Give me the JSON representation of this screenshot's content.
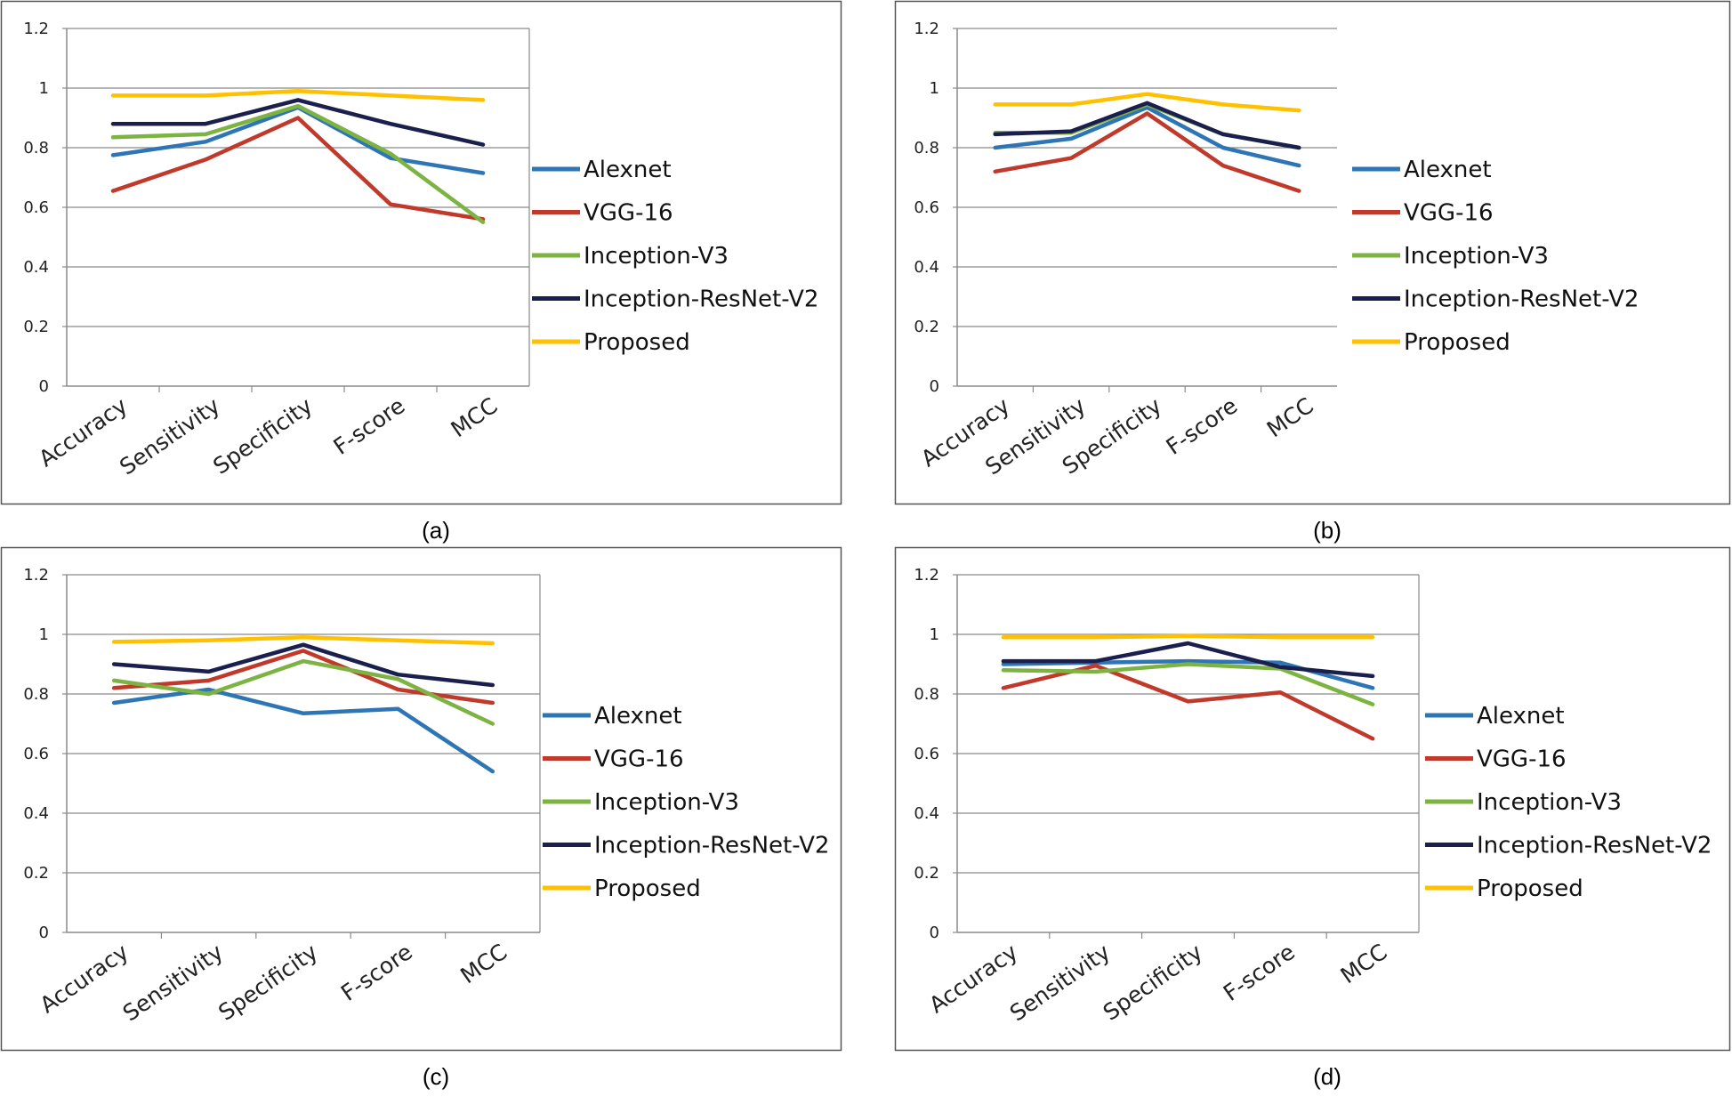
{
  "chart_data": [
    {
      "type": "line",
      "caption": "(a)",
      "categories": [
        "Accuracy",
        "Sensitivity",
        "Specificity",
        "F-score",
        "MCC"
      ],
      "ylim": [
        0,
        1.2
      ],
      "yticks": [
        "0",
        "0.2",
        "0.4",
        "0.6",
        "0.8",
        "1",
        "1.2"
      ],
      "grid": true,
      "legend_position": "right",
      "series": [
        {
          "name": "Alexnet",
          "color": "#2E75B6",
          "values": [
            0.775,
            0.82,
            0.935,
            0.765,
            0.715
          ]
        },
        {
          "name": "VGG-16",
          "color": "#C0392B",
          "values": [
            0.655,
            0.76,
            0.9,
            0.61,
            0.56
          ]
        },
        {
          "name": "Inception-V3",
          "color": "#7CB342",
          "values": [
            0.835,
            0.845,
            0.94,
            0.78,
            0.55
          ]
        },
        {
          "name": "Inception-ResNet-V2",
          "color": "#1A1F4E",
          "values": [
            0.88,
            0.88,
            0.96,
            0.88,
            0.81
          ]
        },
        {
          "name": "Proposed",
          "color": "#FFC000",
          "values": [
            0.975,
            0.975,
            0.99,
            0.975,
            0.96
          ]
        }
      ]
    },
    {
      "type": "line",
      "caption": "(b)",
      "categories": [
        "Accuracy",
        "Sensitivity",
        "Specificity",
        "F-score",
        "MCC"
      ],
      "ylim": [
        0,
        1.2
      ],
      "yticks": [
        "0",
        "0.2",
        "0.4",
        "0.6",
        "0.8",
        "1",
        "1.2"
      ],
      "grid": true,
      "legend_position": "right",
      "series": [
        {
          "name": "Alexnet",
          "color": "#2E75B6",
          "values": [
            0.8,
            0.83,
            0.935,
            0.8,
            0.74
          ]
        },
        {
          "name": "VGG-16",
          "color": "#C0392B",
          "values": [
            0.72,
            0.765,
            0.915,
            0.74,
            0.655
          ]
        },
        {
          "name": "Inception-V3",
          "color": "#7CB342",
          "values": [
            0.85,
            0.85,
            0.945,
            0.845,
            0.8
          ]
        },
        {
          "name": "Inception-ResNet-V2",
          "color": "#1A1F4E",
          "values": [
            0.845,
            0.855,
            0.95,
            0.845,
            0.8
          ]
        },
        {
          "name": "Proposed",
          "color": "#FFC000",
          "values": [
            0.945,
            0.945,
            0.98,
            0.945,
            0.925
          ]
        }
      ]
    },
    {
      "type": "line",
      "caption": "(c)",
      "categories": [
        "Accuracy",
        "Sensitivity",
        "Specificity",
        "F-score",
        "MCC"
      ],
      "ylim": [
        0,
        1.2
      ],
      "yticks": [
        "0",
        "0.2",
        "0.4",
        "0.6",
        "0.8",
        "1",
        "1.2"
      ],
      "grid": true,
      "legend_position": "right",
      "series": [
        {
          "name": "Alexnet",
          "color": "#2E75B6",
          "values": [
            0.77,
            0.815,
            0.735,
            0.75,
            0.54
          ]
        },
        {
          "name": "VGG-16",
          "color": "#C0392B",
          "values": [
            0.82,
            0.845,
            0.945,
            0.815,
            0.77
          ]
        },
        {
          "name": "Inception-V3",
          "color": "#7CB342",
          "values": [
            0.845,
            0.8,
            0.91,
            0.85,
            0.7
          ]
        },
        {
          "name": "Inception-ResNet-V2",
          "color": "#1A1F4E",
          "values": [
            0.9,
            0.875,
            0.965,
            0.865,
            0.83
          ]
        },
        {
          "name": "Proposed",
          "color": "#FFC000",
          "values": [
            0.975,
            0.98,
            0.99,
            0.98,
            0.97
          ]
        }
      ]
    },
    {
      "type": "line",
      "caption": "(d)",
      "categories": [
        "Accuracy",
        "Sensitivity",
        "Specificity",
        "F-score",
        "MCC"
      ],
      "ylim": [
        0,
        1.2
      ],
      "yticks": [
        "0",
        "0.2",
        "0.4",
        "0.6",
        "0.8",
        "1",
        "1.2"
      ],
      "grid": true,
      "legend_position": "right",
      "series": [
        {
          "name": "Alexnet",
          "color": "#2E75B6",
          "values": [
            0.9,
            0.905,
            0.91,
            0.905,
            0.82
          ]
        },
        {
          "name": "VGG-16",
          "color": "#C0392B",
          "values": [
            0.82,
            0.895,
            0.775,
            0.805,
            0.65
          ]
        },
        {
          "name": "Inception-V3",
          "color": "#7CB342",
          "values": [
            0.88,
            0.875,
            0.9,
            0.885,
            0.765
          ]
        },
        {
          "name": "Inception-ResNet-V2",
          "color": "#1A1F4E",
          "values": [
            0.91,
            0.91,
            0.97,
            0.89,
            0.86
          ]
        },
        {
          "name": "Proposed",
          "color": "#FFC000",
          "values": [
            0.99,
            0.99,
            0.995,
            0.99,
            0.99
          ]
        }
      ]
    }
  ]
}
